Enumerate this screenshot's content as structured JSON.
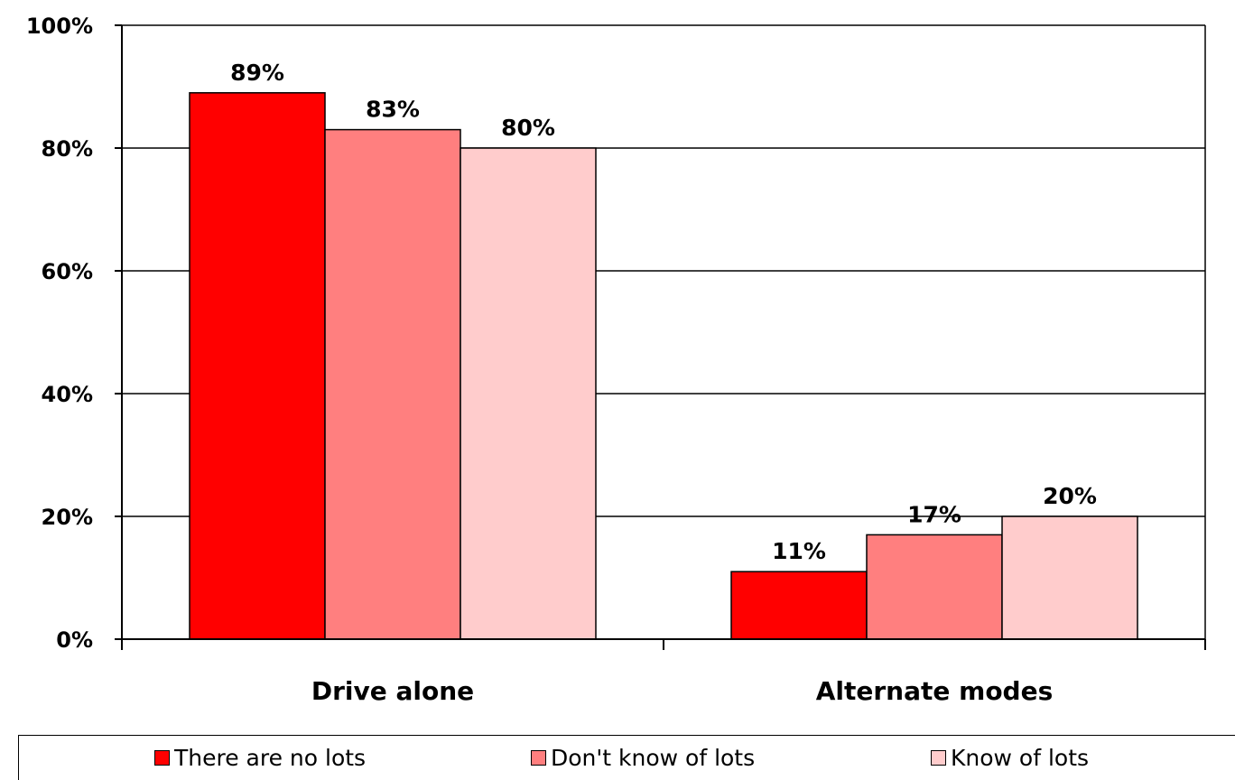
{
  "chart_data": {
    "type": "bar",
    "categories": [
      "Drive alone",
      "Alternate modes"
    ],
    "series": [
      {
        "name": "There are no lots",
        "values": [
          89,
          11
        ],
        "color": "#ff0000",
        "labels": [
          "89%",
          "11%"
        ]
      },
      {
        "name": "Don't know of lots",
        "values": [
          83,
          17
        ],
        "color": "#ff7f7f",
        "labels": [
          "83%",
          "17%"
        ]
      },
      {
        "name": "Know of lots",
        "values": [
          80,
          20
        ],
        "color": "#ffcccc",
        "labels": [
          "80%",
          "20%"
        ]
      }
    ],
    "yticks": [
      {
        "value": 0,
        "label": "0%"
      },
      {
        "value": 20,
        "label": "20%"
      },
      {
        "value": 40,
        "label": "40%"
      },
      {
        "value": 60,
        "label": "60%"
      },
      {
        "value": 80,
        "label": "80%"
      },
      {
        "value": 100,
        "label": "100%"
      }
    ],
    "ylim": [
      0,
      100
    ],
    "title": "",
    "xlabel": "",
    "ylabel": "",
    "grid": true,
    "legend_position": "bottom"
  }
}
